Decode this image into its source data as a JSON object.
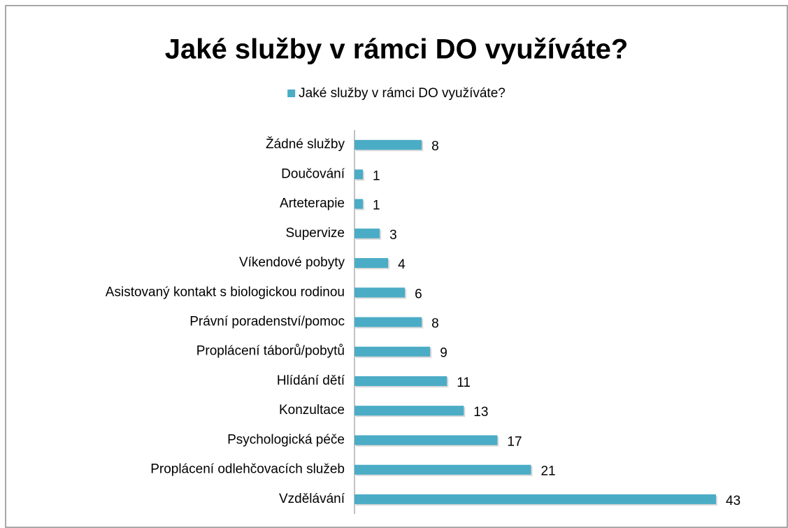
{
  "chart_data": {
    "type": "bar",
    "orientation": "horizontal",
    "title": "Jaké služby v rámci DO využíváte?",
    "categories": [
      "Žádné služby",
      "Doučování",
      "Arteterapie",
      "Supervize",
      "Víkendové pobyty",
      "Asistovaný kontakt s biologickou rodinou",
      "Právní poradenství/pomoc",
      "Proplácení táborů/pobytů",
      "Hlídání dětí",
      "Konzultace",
      "Psychologická péče",
      "Proplácení odlehčovacích služeb",
      "Vzdělávání"
    ],
    "series": [
      {
        "name": "Jaké služby v rámci DO využíváte?",
        "color": "#4bacc6",
        "values": [
          8,
          1,
          1,
          3,
          4,
          6,
          8,
          9,
          11,
          13,
          17,
          21,
          43
        ]
      }
    ],
    "legend": "top"
  }
}
